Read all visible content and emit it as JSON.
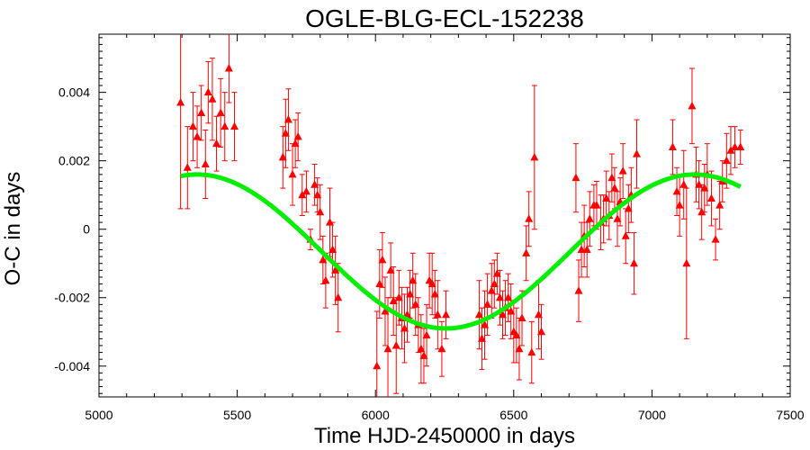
{
  "chart_data": {
    "type": "scatter",
    "title": "OGLE-BLG-ECL-152238",
    "xlabel": "Time HJD-2450000 in days",
    "ylabel": "O-C in days",
    "xlim": [
      5000,
      7500
    ],
    "ylim": [
      -0.0049,
      0.0057
    ],
    "x_ticks": [
      5000,
      5500,
      6000,
      6500,
      7000,
      7500
    ],
    "x_tick_labels": [
      "5000",
      "5500",
      "6000",
      "6500",
      "7000",
      "7500"
    ],
    "y_ticks": [
      -0.004,
      -0.002,
      0,
      0.002,
      0.004
    ],
    "y_tick_labels": [
      "-0.004",
      "-0.002",
      "0",
      "0.002",
      "0.004"
    ],
    "grid": false,
    "colors": {
      "points": "#ff0000",
      "fit": "#00ee00",
      "axes": "#000000"
    },
    "series": [
      {
        "type": "scatter_errorbar",
        "marker": "triangle",
        "points": [
          [
            5295,
            0.0037,
            0.0031
          ],
          [
            5320,
            0.0018,
            0.0012
          ],
          [
            5340,
            0.003,
            0.001
          ],
          [
            5355,
            0.0027,
            0.0009
          ],
          [
            5370,
            0.0034,
            0.0008
          ],
          [
            5385,
            0.0019,
            0.001
          ],
          [
            5395,
            0.004,
            0.0009
          ],
          [
            5410,
            0.0038,
            0.0012
          ],
          [
            5425,
            0.0025,
            0.0008
          ],
          [
            5440,
            0.0034,
            0.001
          ],
          [
            5455,
            0.003,
            0.001
          ],
          [
            5470,
            0.0047,
            0.001
          ],
          [
            5490,
            0.003,
            0.001
          ],
          [
            5665,
            0.0021,
            0.0009
          ],
          [
            5675,
            0.0028,
            0.001
          ],
          [
            5685,
            0.0032,
            0.0009
          ],
          [
            5700,
            0.0016,
            0.0009
          ],
          [
            5710,
            0.0025,
            0.0007
          ],
          [
            5720,
            0.0027,
            0.0007
          ],
          [
            5735,
            0.001,
            0.0006
          ],
          [
            5750,
            0.0011,
            0.0006
          ],
          [
            5765,
            -0.0003,
            0.0003
          ],
          [
            5780,
            0.0013,
            0.0006
          ],
          [
            5790,
            0.001,
            0.0005
          ],
          [
            5800,
            0.0005,
            0.0008
          ],
          [
            5810,
            -0.0009,
            0.0007
          ],
          [
            5820,
            -0.0015,
            0.0008
          ],
          [
            5835,
            0.0002,
            0.001
          ],
          [
            5845,
            -0.0006,
            0.0008
          ],
          [
            5855,
            -0.0012,
            0.001
          ],
          [
            5865,
            -0.002,
            0.001
          ],
          [
            6005,
            -0.004,
            0.0016
          ],
          [
            6015,
            -0.0016,
            0.001
          ],
          [
            6025,
            -0.0009,
            0.0008
          ],
          [
            6035,
            -0.0024,
            0.001
          ],
          [
            6045,
            -0.0035,
            0.0015
          ],
          [
            6055,
            -0.0012,
            0.0008
          ],
          [
            6065,
            -0.0021,
            0.001
          ],
          [
            6075,
            -0.0034,
            0.0014
          ],
          [
            6085,
            -0.002,
            0.0008
          ],
          [
            6095,
            -0.0026,
            0.0009
          ],
          [
            6105,
            -0.0029,
            0.001
          ],
          [
            6115,
            -0.0025,
            0.0008
          ],
          [
            6125,
            -0.0019,
            0.0007
          ],
          [
            6135,
            -0.0015,
            0.0008
          ],
          [
            6145,
            -0.0022,
            0.0009
          ],
          [
            6155,
            -0.0028,
            0.0008
          ],
          [
            6165,
            -0.0035,
            0.001
          ],
          [
            6175,
            -0.0037,
            0.0008
          ],
          [
            6185,
            -0.0031,
            0.0009
          ],
          [
            6195,
            -0.0015,
            0.0008
          ],
          [
            6205,
            -0.0016,
            0.0009
          ],
          [
            6215,
            -0.0019,
            0.0007
          ],
          [
            6225,
            -0.0025,
            0.001
          ],
          [
            6240,
            -0.0035,
            0.0008
          ],
          [
            6255,
            -0.0025,
            0.0007
          ],
          [
            6375,
            -0.0025,
            0.001
          ],
          [
            6385,
            -0.0032,
            0.0009
          ],
          [
            6395,
            -0.0028,
            0.001
          ],
          [
            6405,
            -0.0022,
            0.0009
          ],
          [
            6420,
            -0.0018,
            0.0008
          ],
          [
            6430,
            -0.0016,
            0.0007
          ],
          [
            6440,
            -0.0013,
            0.0006
          ],
          [
            6450,
            -0.002,
            0.0008
          ],
          [
            6460,
            -0.0025,
            0.0007
          ],
          [
            6470,
            -0.0023,
            0.0008
          ],
          [
            6480,
            -0.002,
            0.0007
          ],
          [
            6490,
            -0.0024,
            0.0008
          ],
          [
            6500,
            -0.003,
            0.0009
          ],
          [
            6510,
            -0.0031,
            0.0008
          ],
          [
            6520,
            -0.0035,
            0.0009
          ],
          [
            6530,
            -0.0026,
            0.0008
          ],
          [
            6545,
            -0.0007,
            0.0008
          ],
          [
            6555,
            0.0003,
            0.0008
          ],
          [
            6565,
            -0.0036,
            0.0009
          ],
          [
            6575,
            0.0021,
            0.0021
          ],
          [
            6590,
            -0.0025,
            0.001
          ],
          [
            6600,
            -0.003,
            0.0008
          ],
          [
            6725,
            0.0015,
            0.001
          ],
          [
            6735,
            -0.0018,
            0.0009
          ],
          [
            6745,
            -0.0006,
            0.0008
          ],
          [
            6755,
            -0.0002,
            0.0009
          ],
          [
            6765,
            -0.0006,
            0.0008
          ],
          [
            6775,
            0.0003,
            0.0008
          ],
          [
            6790,
            0.0007,
            0.0006
          ],
          [
            6800,
            0.0007,
            0.0007
          ],
          [
            6815,
            0.0002,
            0.0008
          ],
          [
            6825,
            0.0003,
            0.0007
          ],
          [
            6835,
            0.0009,
            0.0008
          ],
          [
            6845,
            0.0004,
            0.0007
          ],
          [
            6855,
            0.0015,
            0.0007
          ],
          [
            6865,
            0.0012,
            0.0006
          ],
          [
            6875,
            0.0003,
            0.0008
          ],
          [
            6885,
            0.0008,
            0.0007
          ],
          [
            6895,
            0.0017,
            0.0008
          ],
          [
            6905,
            -0.0002,
            0.0008
          ],
          [
            6915,
            0.0006,
            0.0007
          ],
          [
            6925,
            0.001,
            0.0008
          ],
          [
            6935,
            -0.001,
            0.0009
          ],
          [
            6945,
            0.0022,
            0.001
          ],
          [
            7075,
            0.0024,
            0.0008
          ],
          [
            7090,
            0.0011,
            0.0007
          ],
          [
            7100,
            0.0007,
            0.0009
          ],
          [
            7115,
            0.0013,
            0.001
          ],
          [
            7125,
            -0.001,
            0.0022
          ],
          [
            7145,
            0.0036,
            0.0011
          ],
          [
            7160,
            0.0016,
            0.0008
          ],
          [
            7170,
            0.0013,
            0.0007
          ],
          [
            7180,
            0.0005,
            0.0008
          ],
          [
            7190,
            0.0012,
            0.0007
          ],
          [
            7200,
            0.0016,
            0.0009
          ],
          [
            7215,
            0.0009,
            0.0008
          ],
          [
            7230,
            -0.0003,
            0.0006
          ],
          [
            7245,
            0.0007,
            0.0007
          ],
          [
            7255,
            0.0014,
            0.0006
          ],
          [
            7270,
            0.002,
            0.0008
          ],
          [
            7285,
            0.0023,
            0.0007
          ],
          [
            7300,
            0.0024,
            0.0006
          ],
          [
            7320,
            0.0024,
            0.0005
          ]
        ]
      },
      {
        "type": "line",
        "model": "sinusoid",
        "x_range": [
          5295,
          7320
        ],
        "offset": -0.00065,
        "amplitude": 0.00225,
        "period": 1800,
        "x_of_maximum": 7155
      }
    ]
  }
}
